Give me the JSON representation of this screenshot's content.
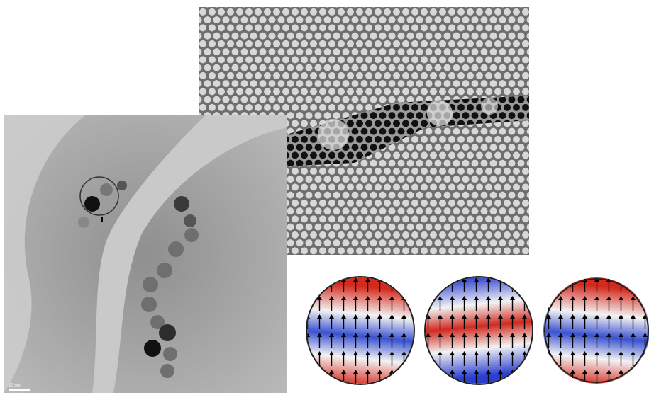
{
  "scale_bar": {
    "label": "20 nm"
  }
}
